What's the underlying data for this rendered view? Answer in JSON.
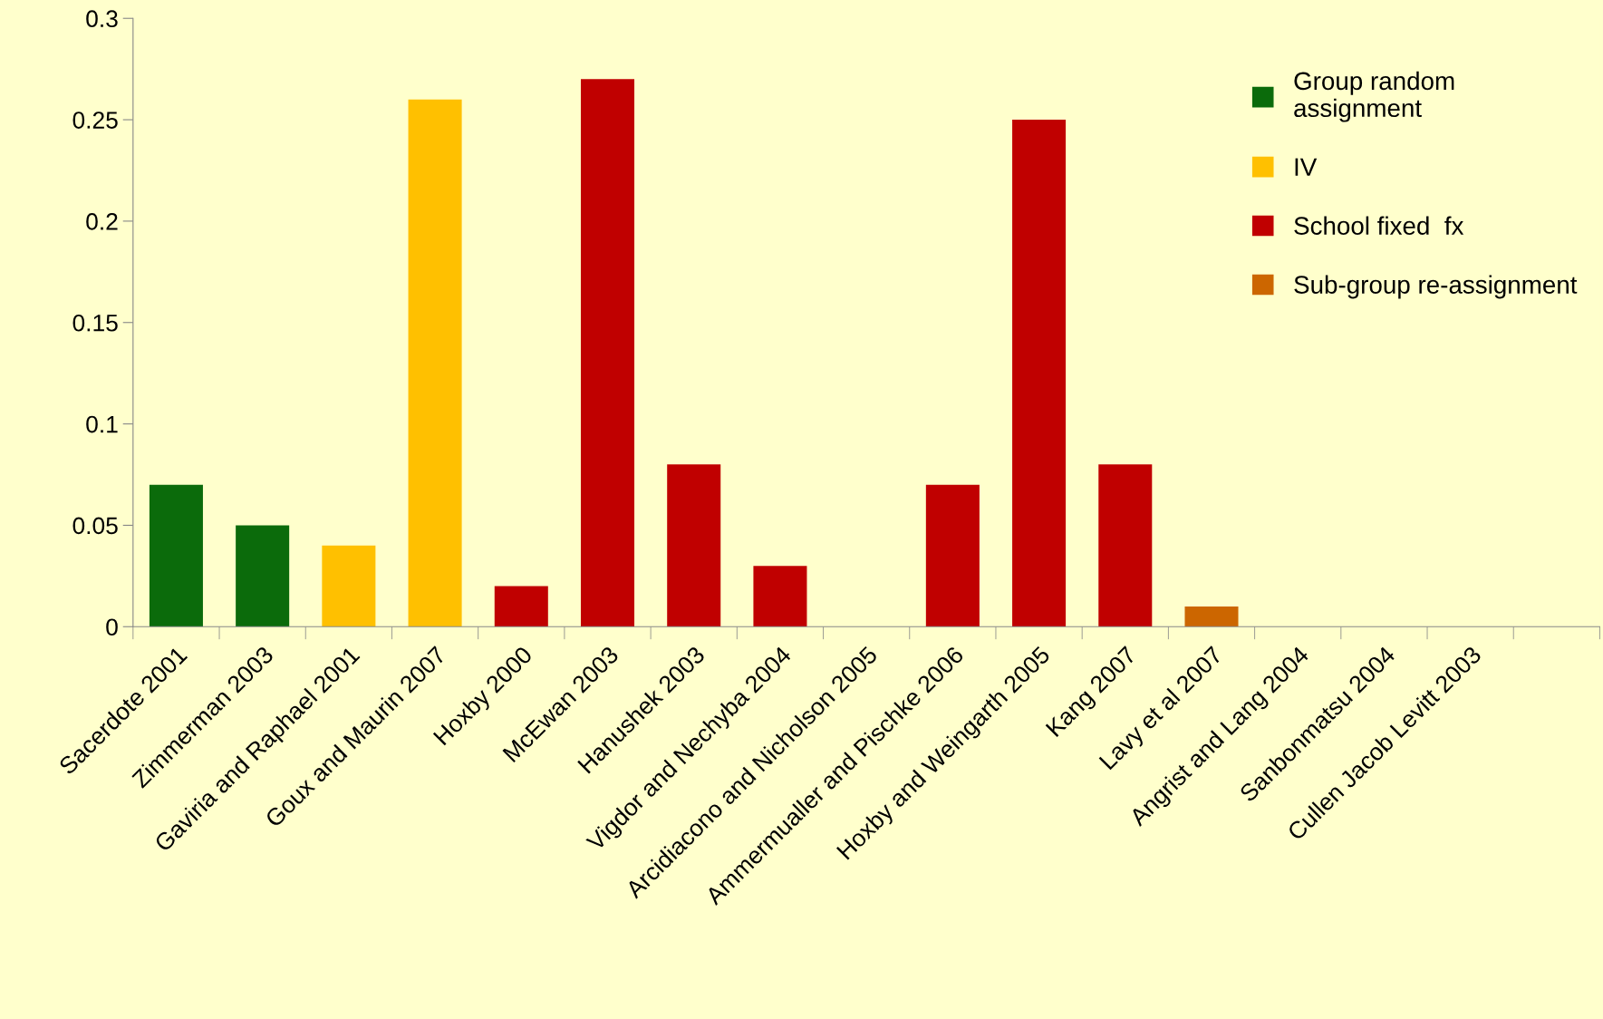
{
  "chart_data": {
    "type": "bar",
    "stacked": true,
    "categories": [
      "Sacerdote 2001",
      "Zimmerman 2003",
      "Gaviria and Raphael 2001",
      "Goux and Maurin 2007",
      "Hoxby 2000",
      "McEwan 2003",
      "Hanushek 2003",
      "Vigdor and Nechyba 2004",
      "Arcidiacono and Nicholson 2005",
      "Ammermualler and Pischke 2006",
      "Hoxby and Weingarth 2005",
      "Kang 2007",
      "Lavy et al 2007",
      "Angrist and Lang 2004",
      "Sanbonmatsu 2004",
      "Cullen Jacob Levitt 2003",
      null
    ],
    "series": [
      {
        "name": "Group random\nassignment",
        "color": "#0b6b0b",
        "values": [
          0.07,
          0.05,
          null,
          null,
          null,
          null,
          null,
          null,
          null,
          null,
          null,
          null,
          null,
          null,
          null,
          null,
          null
        ]
      },
      {
        "name": "IV",
        "color": "#ffc000",
        "values": [
          null,
          null,
          0.04,
          0.26,
          null,
          null,
          null,
          null,
          null,
          null,
          null,
          null,
          null,
          null,
          null,
          null,
          null
        ]
      },
      {
        "name": "School fixed  fx",
        "color": "#c00000",
        "values": [
          null,
          null,
          null,
          null,
          0.02,
          0.27,
          0.08,
          0.03,
          0,
          0.07,
          0.25,
          0.08,
          null,
          null,
          null,
          null,
          null
        ]
      },
      {
        "name": "Sub-group re-assignment",
        "color": "#cc6600",
        "values": [
          null,
          null,
          null,
          null,
          null,
          null,
          null,
          null,
          null,
          null,
          null,
          null,
          0.01,
          null,
          null,
          null,
          null
        ]
      }
    ],
    "ylim": [
      0,
      0.3
    ],
    "yticks": [
      {
        "value": 0,
        "label": "0"
      },
      0.05,
      0.1,
      0.15,
      0.2,
      0.25,
      0.3
    ],
    "grid": false,
    "legend": "top right"
  }
}
